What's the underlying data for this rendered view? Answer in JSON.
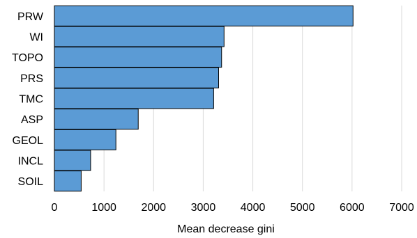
{
  "chart_data": {
    "type": "bar",
    "orientation": "horizontal",
    "categories": [
      "PRW",
      "WI",
      "TOPO",
      "PRS",
      "TMC",
      "ASP",
      "GEOL",
      "INCL",
      "SOIL"
    ],
    "values": [
      6020,
      3420,
      3370,
      3310,
      3210,
      1690,
      1240,
      730,
      540
    ],
    "xlabel": "Mean decrease gini",
    "ylabel": "",
    "xlim": [
      0,
      7000
    ],
    "xticks": [
      "0",
      "1000",
      "2000",
      "3000",
      "4000",
      "5000",
      "6000",
      "7000"
    ],
    "grid": "vertical",
    "legend": "none",
    "bar_color": "#5b9bd5",
    "bar_edge_color": "#000000",
    "grid_color": "#d9d9d9"
  }
}
